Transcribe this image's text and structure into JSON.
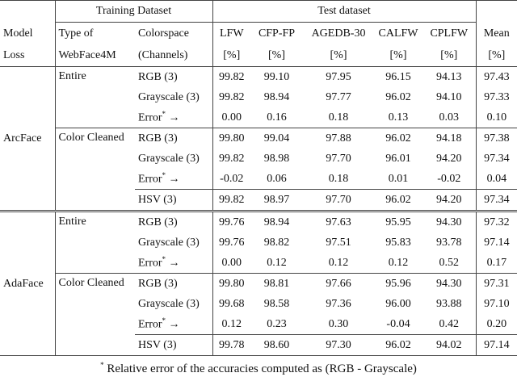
{
  "header": {
    "training": "Training Dataset",
    "test": "Test dataset",
    "columns": [
      [
        "Model",
        "Loss"
      ],
      [
        "Type of",
        "WebFace4M"
      ],
      [
        "Colorspace",
        "(Channels)"
      ],
      [
        "LFW",
        "[%]"
      ],
      [
        "CFP-FP",
        "[%]"
      ],
      [
        "AGEDB-30",
        "[%]"
      ],
      [
        "CALFW",
        "[%]"
      ],
      [
        "CPLFW",
        "[%]"
      ],
      [
        "Mean",
        "[%]"
      ]
    ]
  },
  "groups": [
    {
      "model": "ArcFace",
      "subgroups": [
        {
          "type": "Entire",
          "rows": [
            {
              "colorspace": "RGB (3)",
              "values": [
                "99.82",
                "99.10",
                "97.95",
                "96.15",
                "94.13",
                "97.43"
              ]
            },
            {
              "colorspace": "Grayscale (3)",
              "values": [
                "99.82",
                "98.94",
                "97.77",
                "96.02",
                "94.10",
                "97.33"
              ]
            },
            {
              "colorspace": "Error",
              "sup": "*",
              "arrow": "→",
              "values": [
                "0.00",
                "0.16",
                "0.18",
                "0.13",
                "0.03",
                "0.10"
              ]
            }
          ]
        },
        {
          "type": "Color Cleaned",
          "rows": [
            {
              "colorspace": "RGB (3)",
              "values": [
                "99.80",
                "99.04",
                "97.88",
                "96.02",
                "94.18",
                "97.38"
              ]
            },
            {
              "colorspace": "Grayscale (3)",
              "values": [
                "99.82",
                "98.98",
                "97.70",
                "96.01",
                "94.20",
                "97.34"
              ]
            },
            {
              "colorspace": "Error",
              "sup": "*",
              "arrow": "→",
              "values": [
                "-0.02",
                "0.06",
                "0.18",
                "0.01",
                "-0.02",
                "0.04"
              ]
            }
          ]
        },
        {
          "rows": [
            {
              "colorspace": "HSV (3)",
              "values": [
                "99.82",
                "98.97",
                "97.70",
                "96.02",
                "94.20",
                "97.34"
              ]
            }
          ]
        }
      ]
    },
    {
      "model": "AdaFace",
      "subgroups": [
        {
          "type": "Entire",
          "rows": [
            {
              "colorspace": "RGB (3)",
              "values": [
                "99.76",
                "98.94",
                "97.63",
                "95.95",
                "94.30",
                "97.32"
              ]
            },
            {
              "colorspace": "Grayscale (3)",
              "values": [
                "99.76",
                "98.82",
                "97.51",
                "95.83",
                "93.78",
                "97.14"
              ]
            },
            {
              "colorspace": "Error",
              "sup": "*",
              "arrow": "→",
              "values": [
                "0.00",
                "0.12",
                "0.12",
                "0.12",
                "0.52",
                "0.17"
              ]
            }
          ]
        },
        {
          "type": "Color Cleaned",
          "rows": [
            {
              "colorspace": "RGB (3)",
              "values": [
                "99.80",
                "98.81",
                "97.66",
                "95.96",
                "94.30",
                "97.31"
              ]
            },
            {
              "colorspace": "Grayscale (3)",
              "values": [
                "99.68",
                "98.58",
                "97.36",
                "96.00",
                "93.88",
                "97.10"
              ]
            },
            {
              "colorspace": "Error",
              "sup": "*",
              "arrow": "→",
              "values": [
                "0.12",
                "0.23",
                "0.30",
                "-0.04",
                "0.42",
                "0.20"
              ]
            }
          ]
        },
        {
          "rows": [
            {
              "colorspace": "HSV (3)",
              "values": [
                "99.78",
                "98.60",
                "97.30",
                "96.02",
                "94.02",
                "97.14"
              ]
            }
          ]
        }
      ]
    }
  ],
  "footnote": {
    "mark": "*",
    "text": "Relative error of the accuracies computed as (RGB - Grayscale)"
  }
}
